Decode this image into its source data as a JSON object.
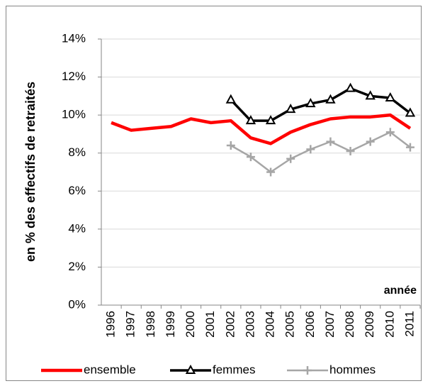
{
  "chart_data": {
    "type": "line",
    "y_label": "en % des effectifs de retraités",
    "x_annotation": "année",
    "categories": [
      "1996",
      "1997",
      "1998",
      "1999",
      "2000",
      "2001",
      "2002",
      "2003",
      "2004",
      "2005",
      "2006",
      "2007",
      "2008",
      "2009",
      "2010",
      "2011"
    ],
    "series": [
      {
        "name": "ensemble",
        "color": "#ff0000",
        "marker": "none",
        "values": [
          9.6,
          9.2,
          9.3,
          9.4,
          9.8,
          9.6,
          9.7,
          8.8,
          8.5,
          9.1,
          9.5,
          9.8,
          9.9,
          9.9,
          10.0,
          9.3
        ]
      },
      {
        "name": "femmes",
        "color": "#000000",
        "marker": "triangle",
        "values": [
          null,
          null,
          null,
          null,
          null,
          null,
          10.8,
          9.7,
          9.7,
          10.3,
          10.6,
          10.8,
          11.4,
          11.0,
          10.9,
          10.1
        ]
      },
      {
        "name": "hommes",
        "color": "#a6a6a6",
        "marker": "plus",
        "values": [
          null,
          null,
          null,
          null,
          null,
          null,
          8.4,
          7.8,
          7.0,
          7.7,
          8.2,
          8.6,
          8.1,
          8.6,
          9.1,
          8.3
        ]
      }
    ],
    "ylim": [
      0,
      14
    ],
    "yticks": [
      {
        "value": 0,
        "label": "0%"
      },
      {
        "value": 2,
        "label": "2%"
      },
      {
        "value": 4,
        "label": "4%"
      },
      {
        "value": 6,
        "label": "6%"
      },
      {
        "value": 8,
        "label": "8%"
      },
      {
        "value": 10,
        "label": "10%"
      },
      {
        "value": 12,
        "label": "12%"
      },
      {
        "value": 14,
        "label": "14%"
      }
    ],
    "grid": true,
    "legend": "bottom"
  }
}
